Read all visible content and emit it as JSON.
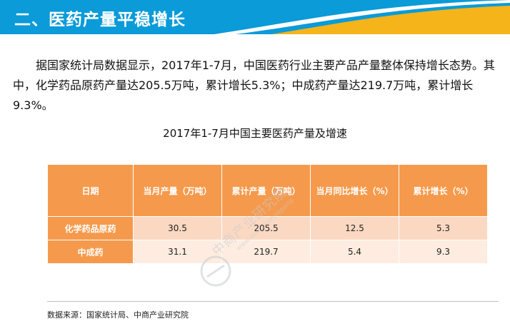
{
  "header": {
    "title": "二、医药产量平稳增长",
    "band_color": "#0a9bd8",
    "curve_colors": [
      "#ffffff",
      "#f4b41a"
    ]
  },
  "paragraph": {
    "text": "据国家统计局数据显示，2017年1-7月，中国医药行业主要产品产量整体保持增长态势。其中，化学药品原药产量达205.5万吨，累计增长5.3%；中成药产量达219.7万吨，累计增长9.3%。"
  },
  "table": {
    "title": "2017年1-7月中国主要医药产量及增速",
    "header_color": "#f59a4c",
    "columns": [
      "日期",
      "当月产量（万吨）",
      "累计产量（万吨）",
      "当月同比增长（%）",
      "累计增长（%）"
    ],
    "rows": [
      {
        "name": "化学药品原药",
        "cells": [
          "30.5",
          "205.5",
          "12.5",
          "5.3"
        ]
      },
      {
        "name": "中成药",
        "cells": [
          "31.1",
          "219.7",
          "5.4",
          "9.3"
        ]
      }
    ]
  },
  "watermark": {
    "text": "中商产业研究院",
    "url": "www.askci.com/reports"
  },
  "footer": {
    "source": "数据来源：国家统计局、中商产业研究院"
  }
}
